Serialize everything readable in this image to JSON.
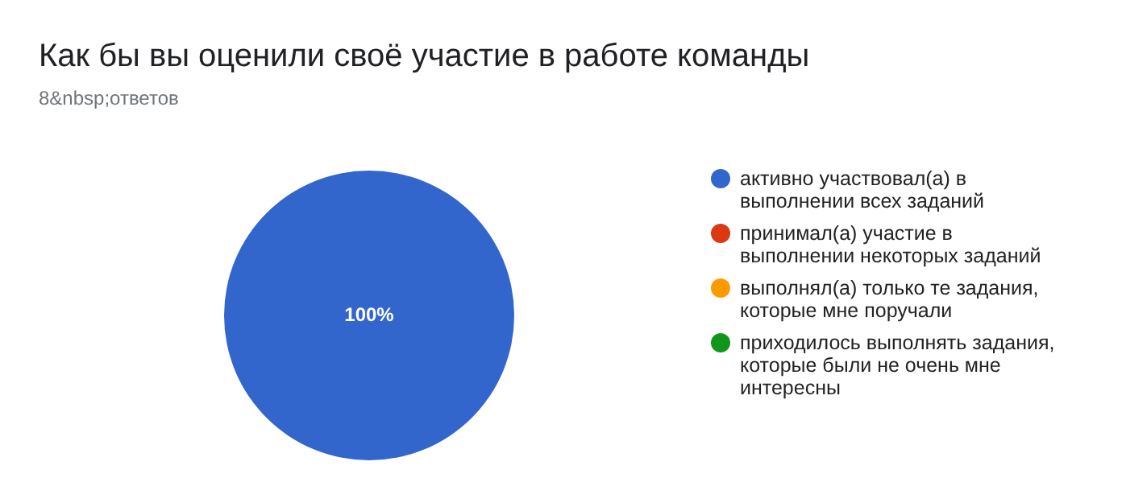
{
  "chart_data": {
    "type": "pie",
    "title": "Как бы вы оценили своё участие в работе команды",
    "subtitle": "8&nbsp;ответов",
    "categories": [
      "активно участвовал(а) в выполнении всех заданий",
      "принимал(а) участие в выполнении некоторых заданий",
      "выполнял(а) только те задания, которые мне поручали",
      "приходилось выполнять задания, которые были не очень мне интересны"
    ],
    "values": [
      100,
      0,
      0,
      0
    ],
    "colors": [
      "#3366cc",
      "#dc3912",
      "#ff9900",
      "#109618"
    ],
    "value_labels": [
      "100%",
      null,
      null,
      null
    ],
    "legend": "right"
  }
}
